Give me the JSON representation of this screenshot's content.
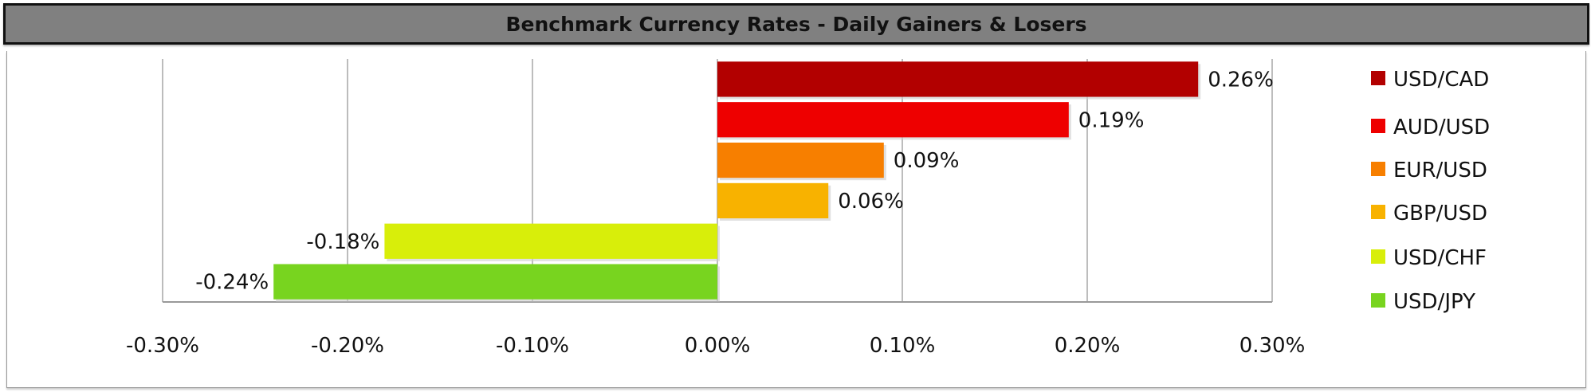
{
  "chart_data": {
    "type": "bar",
    "orientation": "horizontal",
    "title": "Benchmark Currency Rates - Daily Gainers & Losers",
    "categories": [
      "USD/CAD",
      "AUD/USD",
      "EUR/USD",
      "GBP/USD",
      "USD/CHF",
      "USD/JPY"
    ],
    "values": [
      0.26,
      0.19,
      0.09,
      0.06,
      -0.18,
      -0.24
    ],
    "data_labels": [
      "0.26%",
      "0.19%",
      "0.09%",
      "0.06%",
      "-0.18%",
      "-0.24%"
    ],
    "colors": [
      "#b20000",
      "#ee0000",
      "#f77f00",
      "#f8b200",
      "#d8ee0a",
      "#78d41f"
    ],
    "xlim": [
      -0.3,
      0.3
    ],
    "xticks": [
      -0.3,
      -0.2,
      -0.1,
      0.0,
      0.1,
      0.2,
      0.3
    ],
    "xtick_labels": [
      "-0.30%",
      "-0.20%",
      "-0.10%",
      "0.00%",
      "0.10%",
      "0.20%",
      "0.30%"
    ],
    "unit": "%",
    "grid": "vertical",
    "legend_placement": "right"
  }
}
